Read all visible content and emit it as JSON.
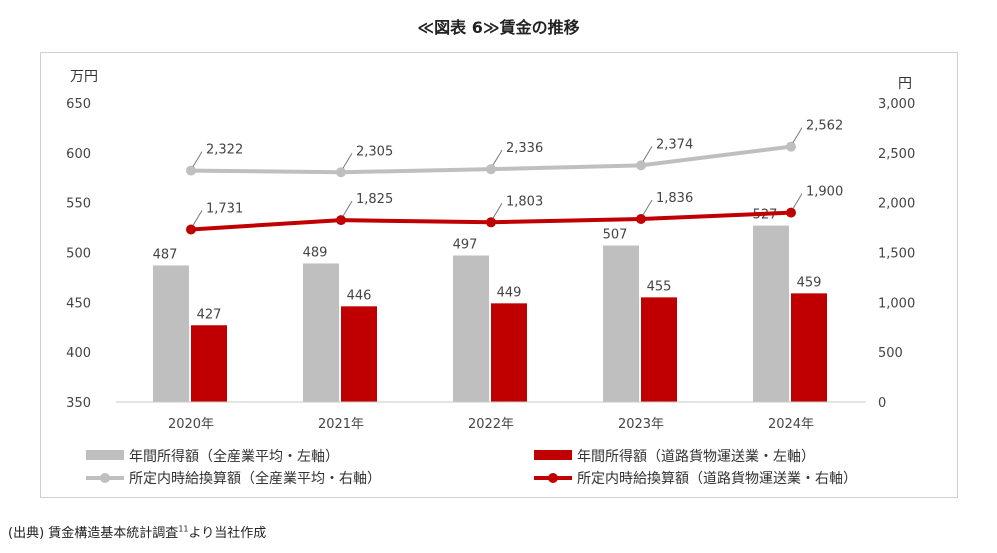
{
  "title": "≪図表 6≫賃金の推移",
  "source": {
    "prefix": "(出典)",
    "text": "賃金構造基本統計調査",
    "sup": "11",
    "suffix": "より当社作成"
  },
  "chart_data": {
    "type": "bar",
    "categories": [
      "2020年",
      "2021年",
      "2022年",
      "2023年",
      "2024年"
    ],
    "left_axis": {
      "unit": "万円",
      "min": 350,
      "max": 650,
      "ticks": [
        "350",
        "400",
        "450",
        "500",
        "550",
        "600",
        "650"
      ]
    },
    "right_axis": {
      "unit": "円",
      "min": 0,
      "max": 3000,
      "ticks": [
        "0",
        "500",
        "1,000",
        "1,500",
        "2,000",
        "2,500",
        "3,000"
      ]
    },
    "series": [
      {
        "name": "年間所得額（全産業平均・左軸）",
        "type": "bar",
        "axis": "left",
        "color": "#bfbfbf",
        "values": [
          487,
          489,
          497,
          507,
          527
        ],
        "labels": [
          "487",
          "489",
          "497",
          "507",
          "527"
        ]
      },
      {
        "name": "年間所得額（道路貨物運送業・左軸）",
        "type": "bar",
        "axis": "left",
        "color": "#c00000",
        "values": [
          427,
          446,
          449,
          455,
          459
        ],
        "labels": [
          "427",
          "446",
          "449",
          "455",
          "459"
        ]
      },
      {
        "name": "所定内時給換算額（全産業平均・右軸）",
        "type": "line",
        "axis": "right",
        "color": "#bfbfbf",
        "values": [
          2322,
          2305,
          2336,
          2374,
          2562
        ],
        "labels": [
          "2,322",
          "2,305",
          "2,336",
          "2,374",
          "2,562"
        ]
      },
      {
        "name": "所定内時給換算額（道路貨物運送業・右軸）",
        "type": "line",
        "axis": "right",
        "color": "#c00000",
        "values": [
          1731,
          1825,
          1803,
          1836,
          1900
        ],
        "labels": [
          "1,731",
          "1,825",
          "1,803",
          "1,836",
          "1,900"
        ]
      }
    ],
    "grid": false,
    "legend": "bottom"
  }
}
